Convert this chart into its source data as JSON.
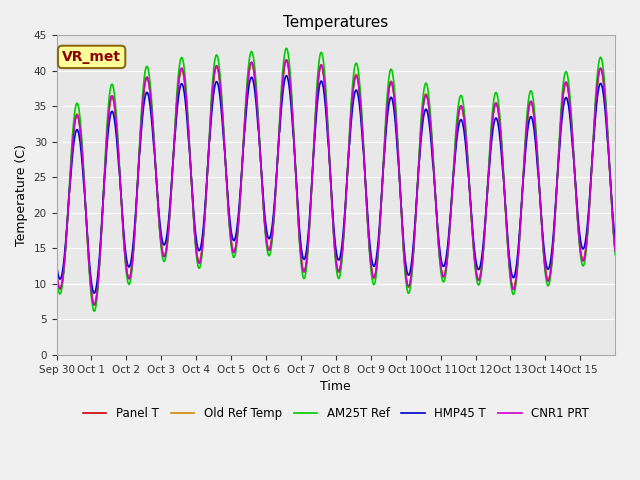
{
  "title": "Temperatures",
  "xlabel": "Time",
  "ylabel": "Temperature (C)",
  "ylim": [
    0,
    45
  ],
  "yticks": [
    0,
    5,
    10,
    15,
    20,
    25,
    30,
    35,
    40,
    45
  ],
  "background_color": "#f0f0f0",
  "plot_bg_color": "#e8e8e8",
  "legend_labels": [
    "Panel T",
    "Old Ref Temp",
    "AM25T Ref",
    "HMP45 T",
    "CNR1 PRT"
  ],
  "legend_colors": [
    "#cc0000",
    "#cc8800",
    "#00cc00",
    "#0000cc",
    "#cc00cc"
  ],
  "xtick_labels": [
    "Sep 30",
    "Oct 1",
    "Oct 2",
    "Oct 3",
    "Oct 4",
    "Oct 5",
    "Oct 6",
    "Oct 7",
    "Oct 8",
    "Oct 9",
    "Oct 10",
    "Oct 11",
    "Oct 12",
    "Oct 13",
    "Oct 14",
    "Oct 15"
  ],
  "n_days": 16,
  "annotation_text": "VR_met",
  "amp_envelope_peaks": [
    33,
    35,
    38,
    40,
    40.5,
    41,
    41.5,
    41,
    39.5,
    38.5,
    36.5,
    35,
    35.5,
    36,
    39.5,
    39
  ],
  "amp_envelope_mins": [
    10,
    7,
    11,
    14,
    13,
    15,
    14,
    11,
    12,
    9.5,
    10.5,
    11,
    9.5,
    10,
    13,
    13
  ]
}
